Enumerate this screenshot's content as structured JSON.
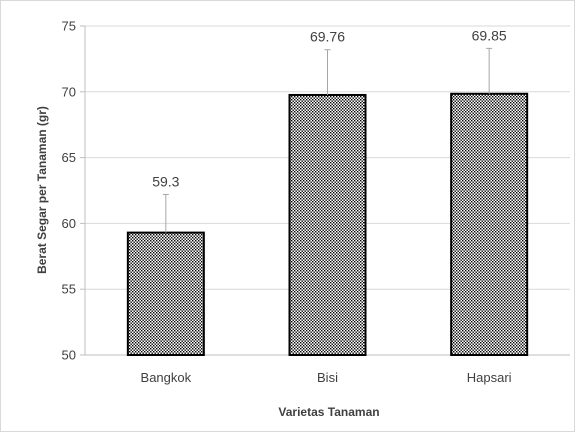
{
  "chart_data": {
    "type": "bar",
    "title": "",
    "xlabel": "Varietas Tanaman",
    "ylabel": "Berat Segar per Tanaman  (gr)",
    "ylim": [
      50,
      75
    ],
    "yticks": [
      50,
      55,
      60,
      65,
      70,
      75
    ],
    "grid": true,
    "categories": [
      "Bangkok",
      "Bisi",
      "Hapsari"
    ],
    "values": [
      59.3,
      69.76,
      69.85
    ],
    "data_labels": [
      "59.3",
      "69.76",
      "69.85"
    ],
    "error_upper": [
      62.2,
      73.2,
      73.3
    ],
    "colors": {
      "bar_border": "#000000",
      "bar_dots": "#000000",
      "grid": "#d9d9d9",
      "axis": "#bfbfbf",
      "error": "#a6a6a6"
    }
  }
}
